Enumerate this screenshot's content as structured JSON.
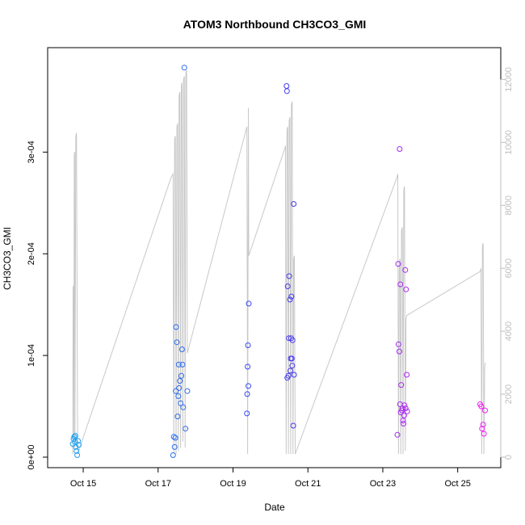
{
  "chart_data": {
    "type": "scatter",
    "title": "ATOM3 Northbound CH3CO3_GMI",
    "xlabel": "Date",
    "ylabel": "CH3CO3_GMI",
    "x_ticks": [
      "Oct 15",
      "Oct 17",
      "Oct 19",
      "Oct 21",
      "Oct 23",
      "Oct 25"
    ],
    "x_tick_days": [
      15,
      17,
      19,
      21,
      23,
      25
    ],
    "xlim": [
      14.05,
      26.15
    ],
    "y_ticks": [
      "0e+00",
      "1e-04",
      "2e-04",
      "3e-04"
    ],
    "y_tick_values": [
      0,
      0.0001,
      0.0002,
      0.0003
    ],
    "ylim": [
      0,
      0.00039
    ],
    "y2_ticks": [
      "0",
      "2000",
      "4000",
      "6000",
      "8000",
      "10000",
      "12000"
    ],
    "y2_tick_values": [
      0,
      2000,
      4000,
      6000,
      8000,
      10000,
      12000
    ],
    "y2lim": [
      0,
      12600
    ],
    "colors": {
      "line": "#c8c8c8",
      "point_start": "#1ea0f0",
      "point_mid": "#3c3cf0",
      "point_end": "#f01ef0"
    },
    "points": [
      [
        14.72,
        1.3e-05
      ],
      [
        14.74,
        1.8e-05
      ],
      [
        14.76,
        2e-05
      ],
      [
        14.78,
        1.5e-05
      ],
      [
        14.8,
        1e-05
      ],
      [
        14.82,
        6e-06
      ],
      [
        14.84,
        2e-06
      ],
      [
        14.86,
        1.6e-05
      ],
      [
        14.88,
        1.2e-05
      ],
      [
        14.79,
        2.1e-05
      ],
      [
        17.4,
        2e-06
      ],
      [
        17.42,
        2e-05
      ],
      [
        17.44,
        1e-05
      ],
      [
        17.46,
        1.9e-05
      ],
      [
        17.47,
        6.5e-05
      ],
      [
        17.48,
        0.000128
      ],
      [
        17.5,
        0.000113
      ],
      [
        17.52,
        4e-05
      ],
      [
        17.54,
        6e-05
      ],
      [
        17.55,
        9.1e-05
      ],
      [
        17.56,
        6.8e-05
      ],
      [
        17.58,
        7.5e-05
      ],
      [
        17.6,
        5.3e-05
      ],
      [
        17.62,
        8e-05
      ],
      [
        17.64,
        0.000106
      ],
      [
        17.65,
        9.1e-05
      ],
      [
        17.67,
        4.9e-05
      ],
      [
        17.7,
        0.000383
      ],
      [
        17.73,
        2.8e-05
      ],
      [
        17.78,
        6.5e-05
      ],
      [
        19.37,
        4.3e-05
      ],
      [
        19.38,
        6.2e-05
      ],
      [
        19.39,
        8.9e-05
      ],
      [
        19.4,
        0.00011
      ],
      [
        19.41,
        7e-05
      ],
      [
        19.42,
        0.000151
      ],
      [
        20.43,
        0.000365
      ],
      [
        20.44,
        0.00036
      ],
      [
        20.45,
        7.8e-05
      ],
      [
        20.46,
        0.000168
      ],
      [
        20.48,
        8e-05
      ],
      [
        20.49,
        0.000117
      ],
      [
        20.5,
        0.000178
      ],
      [
        20.52,
        0.000155
      ],
      [
        20.53,
        8.5e-05
      ],
      [
        20.54,
        9.7e-05
      ],
      [
        20.55,
        0.000117
      ],
      [
        20.56,
        0.000158
      ],
      [
        20.57,
        9.7e-05
      ],
      [
        20.58,
        9e-05
      ],
      [
        20.59,
        0.000115
      ],
      [
        20.61,
        3.1e-05
      ],
      [
        20.62,
        0.000249
      ],
      [
        20.63,
        8.1e-05
      ],
      [
        23.39,
        2.2e-05
      ],
      [
        23.41,
        0.00019
      ],
      [
        23.42,
        0.000111
      ],
      [
        23.44,
        0.000104
      ],
      [
        23.45,
        0.000303
      ],
      [
        23.46,
        5.2e-05
      ],
      [
        23.47,
        0.00017
      ],
      [
        23.48,
        4.4e-05
      ],
      [
        23.49,
        7.1e-05
      ],
      [
        23.51,
        4.6e-05
      ],
      [
        23.52,
        4.8e-05
      ],
      [
        23.54,
        3.6e-05
      ],
      [
        23.55,
        3.3e-05
      ],
      [
        23.57,
        4.1e-05
      ],
      [
        23.58,
        5.1e-05
      ],
      [
        23.6,
        0.000184
      ],
      [
        23.61,
        4.8e-05
      ],
      [
        23.62,
        0.000165
      ],
      [
        23.64,
        8.1e-05
      ],
      [
        23.65,
        4.5e-05
      ],
      [
        25.6,
        5.2e-05
      ],
      [
        25.63,
        5e-05
      ],
      [
        25.65,
        2.8e-05
      ],
      [
        25.68,
        3.2e-05
      ],
      [
        25.7,
        2.3e-05
      ],
      [
        25.73,
        4.6e-05
      ]
    ],
    "altitude": [
      [
        14.72,
        100
      ],
      [
        14.73,
        5400
      ],
      [
        14.74,
        5450
      ],
      [
        14.75,
        600
      ],
      [
        14.76,
        9600
      ],
      [
        14.77,
        9700
      ],
      [
        14.78,
        300
      ],
      [
        14.8,
        10200
      ],
      [
        14.82,
        10300
      ],
      [
        14.85,
        100
      ],
      [
        17.35,
        8900
      ],
      [
        17.4,
        9000
      ],
      [
        17.42,
        100
      ],
      [
        17.44,
        10100
      ],
      [
        17.46,
        10200
      ],
      [
        17.48,
        100
      ],
      [
        17.5,
        10500
      ],
      [
        17.52,
        10600
      ],
      [
        17.54,
        200
      ],
      [
        17.56,
        11500
      ],
      [
        17.58,
        11600
      ],
      [
        17.6,
        300
      ],
      [
        17.62,
        11800
      ],
      [
        17.64,
        11900
      ],
      [
        17.66,
        500
      ],
      [
        17.68,
        12000
      ],
      [
        17.7,
        12100
      ],
      [
        17.72,
        300
      ],
      [
        17.74,
        12200
      ],
      [
        17.76,
        12300
      ],
      [
        17.78,
        3300
      ],
      [
        19.35,
        10400
      ],
      [
        19.37,
        10500
      ],
      [
        19.39,
        100
      ],
      [
        19.41,
        11100
      ],
      [
        19.42,
        6400
      ],
      [
        20.38,
        9800
      ],
      [
        20.4,
        9900
      ],
      [
        20.42,
        100
      ],
      [
        20.44,
        10400
      ],
      [
        20.46,
        10500
      ],
      [
        20.48,
        100
      ],
      [
        20.5,
        10700
      ],
      [
        20.52,
        10800
      ],
      [
        20.54,
        100
      ],
      [
        20.56,
        11200
      ],
      [
        20.58,
        11300
      ],
      [
        20.6,
        100
      ],
      [
        20.62,
        6300
      ],
      [
        20.64,
        6400
      ],
      [
        20.66,
        100
      ],
      [
        23.38,
        8900
      ],
      [
        23.4,
        9000
      ],
      [
        23.42,
        100
      ],
      [
        23.44,
        6200
      ],
      [
        23.46,
        6300
      ],
      [
        23.48,
        100
      ],
      [
        23.5,
        7200
      ],
      [
        23.52,
        7300
      ],
      [
        23.54,
        100
      ],
      [
        23.56,
        8500
      ],
      [
        23.58,
        8600
      ],
      [
        23.6,
        200
      ],
      [
        23.62,
        4400
      ],
      [
        23.64,
        4500
      ],
      [
        25.6,
        5900
      ],
      [
        25.62,
        6000
      ],
      [
        25.64,
        100
      ],
      [
        25.66,
        6700
      ],
      [
        25.68,
        6800
      ],
      [
        25.7,
        100
      ],
      [
        25.72,
        2900
      ],
      [
        25.74,
        3000
      ]
    ]
  }
}
